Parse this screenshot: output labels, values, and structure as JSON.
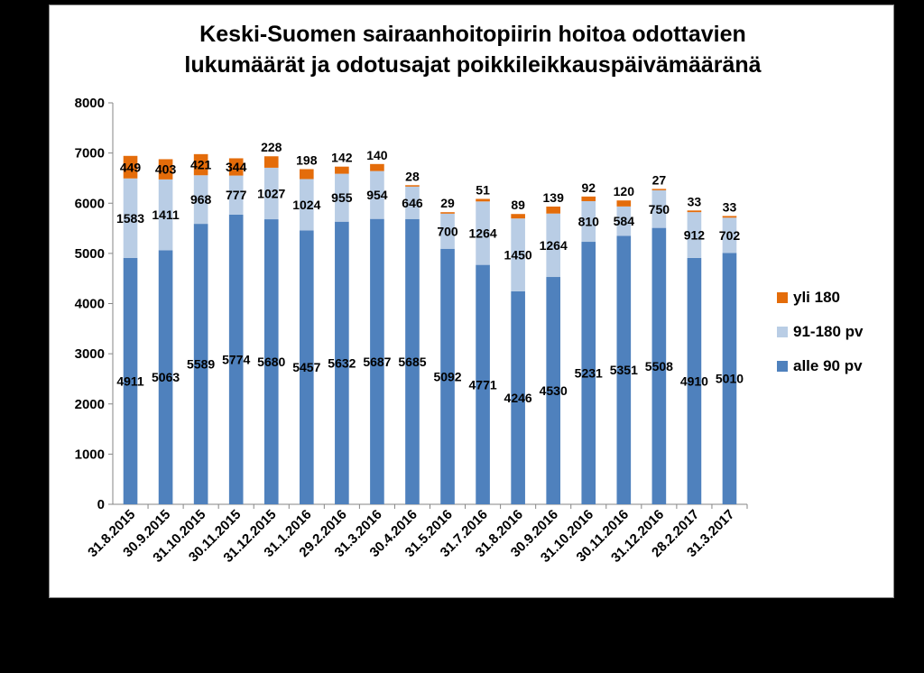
{
  "chart_data": {
    "type": "bar",
    "stacked": true,
    "title": [
      "Keski-Suomen sairaanhoitopiirin hoitoa odottavien",
      "lukumäärät ja odotusajat poikkileikkauspäivämääränä"
    ],
    "categories": [
      "31.8.2015",
      "30.9.2015",
      "31.10.2015",
      "30.11.2015",
      "31.12.2015",
      "31.1.2016",
      "29.2.2016",
      "31.3.2016",
      "30.4.2016",
      "31.5.2016",
      "31.7.2016",
      "31.8.2016",
      "30.9.2016",
      "31.10.2016",
      "30.11.2016",
      "31.12.2016",
      "28.2.2017",
      "31.3.2017"
    ],
    "series": [
      {
        "name": "alle 90 pv",
        "color": "#4F81BD",
        "values": [
          4911,
          5063,
          5589,
          5774,
          5680,
          5457,
          5632,
          5687,
          5685,
          5092,
          4771,
          4246,
          4530,
          5231,
          5351,
          5508,
          4910,
          5010
        ]
      },
      {
        "name": "91-180 pv",
        "color": "#B9CDE5",
        "values": [
          1583,
          1411,
          968,
          777,
          1027,
          1024,
          955,
          954,
          646,
          700,
          1264,
          1450,
          1264,
          810,
          584,
          750,
          912,
          702
        ]
      },
      {
        "name": "yli 180",
        "color": "#E46C0A",
        "values": [
          449,
          403,
          421,
          344,
          228,
          198,
          142,
          140,
          28,
          29,
          51,
          89,
          139,
          92,
          120,
          27,
          33,
          33
        ]
      }
    ],
    "ylim": [
      0,
      8000
    ],
    "yticks": [
      0,
      1000,
      2000,
      3000,
      4000,
      5000,
      6000,
      7000,
      8000
    ],
    "grid": false,
    "legend_position": "right"
  }
}
